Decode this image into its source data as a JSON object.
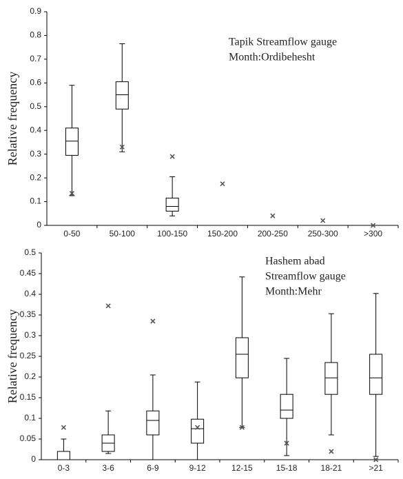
{
  "chart_data": [
    {
      "type": "box",
      "y_label": "Relative frequency",
      "annotation": [
        "Tapik Streamflow gauge",
        "Month:Ordibehesht"
      ],
      "categories": [
        "0-50",
        "50-100",
        "100-150",
        "150-200",
        "200-250",
        "250-300",
        ">300"
      ],
      "whisker_low": [
        0.125,
        0.31,
        0.04,
        null,
        null,
        null,
        null
      ],
      "q1": [
        0.295,
        0.49,
        0.06,
        null,
        null,
        null,
        null
      ],
      "median": [
        0.355,
        0.55,
        0.08,
        null,
        null,
        null,
        null
      ],
      "q3": [
        0.41,
        0.605,
        0.115,
        null,
        null,
        null,
        null
      ],
      "whisker_high": [
        0.59,
        0.765,
        0.205,
        null,
        null,
        null,
        null
      ],
      "observed": [
        0.135,
        0.33,
        0.29,
        0.175,
        0.04,
        0.02,
        0
      ],
      "ylim": [
        0,
        0.9
      ],
      "yticks": [
        0,
        0.1,
        0.2,
        0.3,
        0.4,
        0.5,
        0.6,
        0.7,
        0.8,
        0.9
      ]
    },
    {
      "type": "box",
      "y_label": "Relative frequency",
      "annotation": [
        "Hashem abad",
        "Streamflow gauge",
        "Month:Mehr"
      ],
      "categories": [
        "0-3",
        "3-6",
        "6-9",
        "9-12",
        "12-15",
        "15-18",
        "18-21",
        ">21"
      ],
      "whisker_low": [
        0,
        0.015,
        0,
        0,
        0.078,
        0.01,
        0.06,
        0.008
      ],
      "q1": [
        0,
        0.02,
        0.06,
        0.04,
        0.198,
        0.1,
        0.158,
        0.158
      ],
      "median": [
        0,
        0.04,
        0.095,
        0.075,
        0.255,
        0.12,
        0.198,
        0.198
      ],
      "q3": [
        0.02,
        0.06,
        0.118,
        0.098,
        0.295,
        0.158,
        0.235,
        0.255
      ],
      "whisker_high": [
        0.05,
        0.118,
        0.205,
        0.188,
        0.442,
        0.245,
        0.353,
        0.402
      ],
      "observed": [
        0.078,
        0.372,
        0.335,
        0.078,
        0.078,
        0.04,
        0.02,
        0
      ],
      "ylim": [
        0,
        0.5
      ],
      "yticks": [
        0,
        0.05,
        0.1,
        0.15,
        0.2,
        0.25,
        0.3,
        0.35,
        0.4,
        0.45,
        0.5
      ]
    }
  ]
}
